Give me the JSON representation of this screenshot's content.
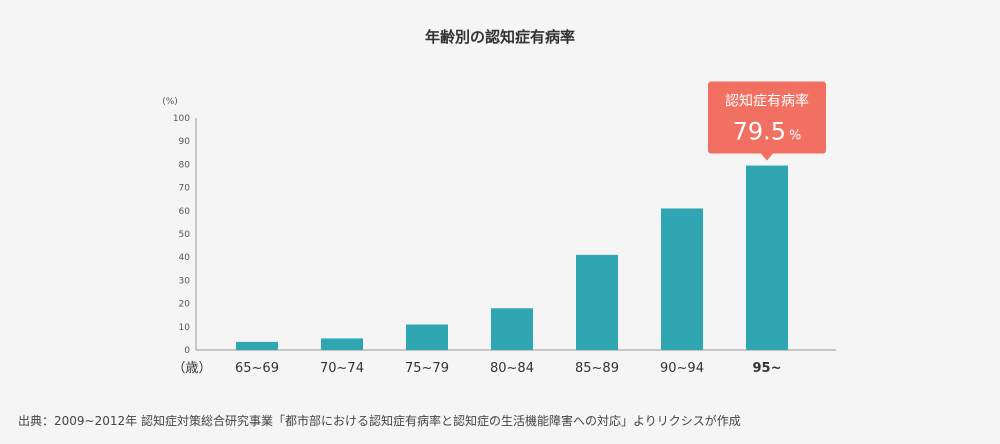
{
  "chart_data": {
    "type": "bar",
    "title": "年齢別の認知症有病率",
    "y_unit_label": "(%)",
    "x_unit_label": "（歳）",
    "ylim": [
      0,
      100
    ],
    "y_ticks": [
      0,
      10,
      20,
      30,
      40,
      50,
      60,
      70,
      80,
      90,
      100
    ],
    "grid": false,
    "categories": [
      "65~69",
      "70~74",
      "75~79",
      "80~84",
      "85~89",
      "90~94",
      "95~"
    ],
    "values": [
      3.5,
      5,
      11,
      18,
      41,
      61,
      79.5
    ],
    "bar_color": "#31a6b3",
    "highlight": {
      "category": "95~",
      "label": "認知症有病率",
      "value": "79.5",
      "unit": "%",
      "color": "#f27062"
    }
  },
  "source": "出典：2009~2012年 認知症対策総合研究事業「都市部における認知症有病率と認知症の生活機能障害への対応」よりリクシスが作成"
}
